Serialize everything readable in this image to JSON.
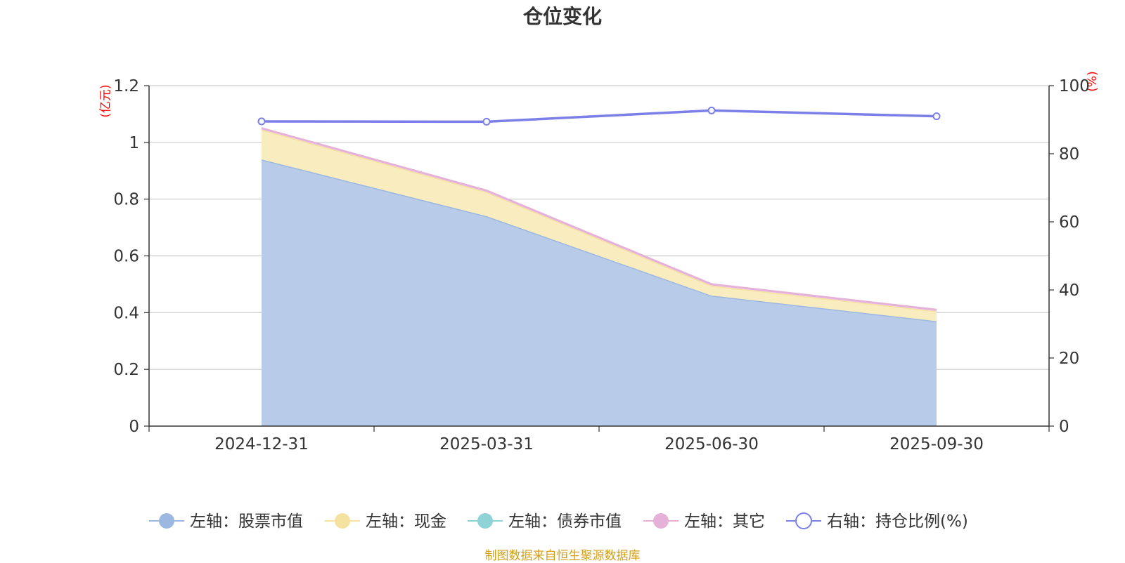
{
  "chart_data": {
    "type": "area",
    "title": "仓位变化",
    "left_axis_unit": "(亿元)",
    "right_axis_unit": "(%)",
    "categories": [
      "2024-12-31",
      "2025-03-31",
      "2025-06-30",
      "2025-09-30"
    ],
    "left_axis": {
      "min": 0,
      "max": 1.2,
      "ticks": [
        "0",
        "0.2",
        "0.4",
        "0.6",
        "0.8",
        "1",
        "1.2"
      ]
    },
    "right_axis": {
      "min": 0,
      "max": 100,
      "ticks": [
        "0",
        "20",
        "40",
        "60",
        "80",
        "100"
      ]
    },
    "stacked_series": [
      {
        "name": "左轴：股票市值",
        "color": "#9db8e0",
        "fill": "#b8cbe9",
        "values": [
          0.94,
          0.74,
          0.46,
          0.37
        ]
      },
      {
        "name": "左轴：现金",
        "color": "#f5e2a0",
        "fill": "#f9edbf",
        "values": [
          0.105,
          0.085,
          0.035,
          0.035
        ]
      },
      {
        "name": "左轴：债券市值",
        "color": "#8fd3d6",
        "fill": "#b9e4e6",
        "values": [
          0,
          0,
          0,
          0
        ]
      },
      {
        "name": "左轴：其它",
        "color": "#e6b1d9",
        "fill": "#f2d3ea",
        "values": [
          0.005,
          0.005,
          0.005,
          0.005
        ]
      }
    ],
    "line_series": [
      {
        "name": "右轴：持仓比例(%)",
        "color": "#7b7fe8",
        "axis": "right",
        "values": [
          89.5,
          89.4,
          92.7,
          91.0
        ]
      }
    ],
    "grid": true,
    "legend_position": "bottom"
  },
  "source_note": "制图数据来自恒生聚源数据库"
}
